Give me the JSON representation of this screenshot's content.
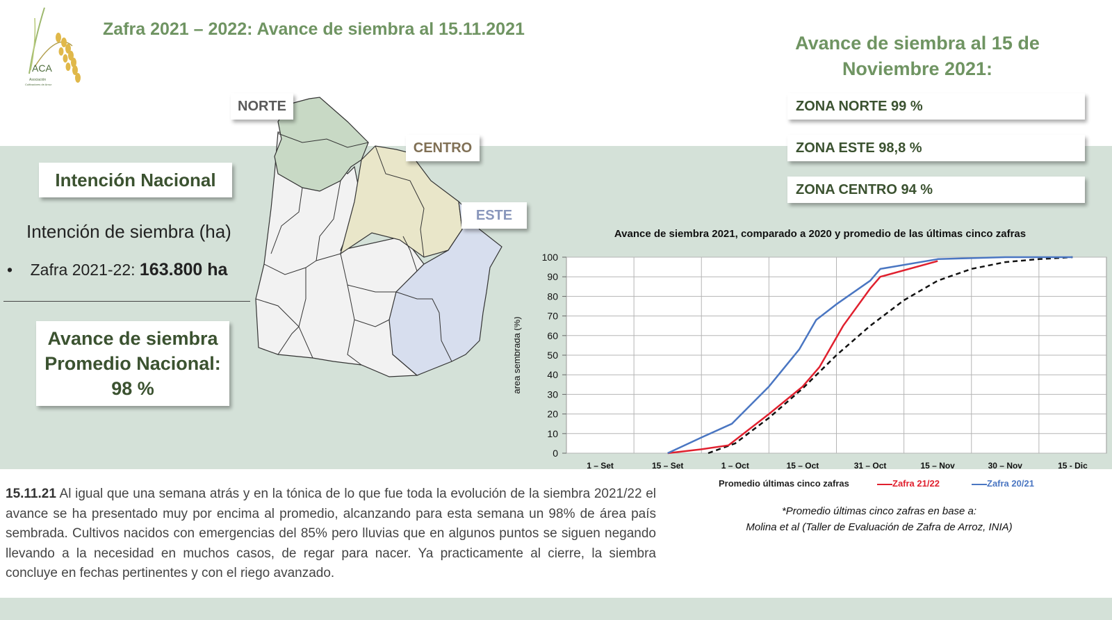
{
  "logo": {
    "name": "ACA",
    "sub1": "Asociación",
    "sub2": "Cultivadores de Arroz"
  },
  "title": "Zafra 2021 – 2022: Avance de siembra al 15.11.2021",
  "right_panel": {
    "title_line1": "Avance de siembra al 15 de",
    "title_line2": "Noviembre 2021:",
    "zones": [
      "ZONA NORTE  99 %",
      "ZONA ESTE 98,8 %",
      "ZONA CENTRO 94 %"
    ]
  },
  "left_panel": {
    "intencion_label": "Intención Nacional",
    "intencion_siembra": "Intención de siembra (ha)",
    "bullet": "•",
    "zafra_prefix": "Zafra ",
    "zafra_year": "2021-22: ",
    "zafra_value": "163.800 ha",
    "avance_line1": "Avance de siembra",
    "avance_line2": "Promedio Nacional:",
    "avance_line3": "98 %"
  },
  "map_labels": {
    "norte": "NORTE",
    "centro": "CENTRO",
    "este": "ESTE"
  },
  "colors": {
    "norte": "#c8d9c5",
    "centro": "#e9e6c9",
    "este": "#d7deee",
    "other": "#f2f2f2",
    "zafra_21_22": "#e0202e",
    "zafra_20_21": "#4a76c2",
    "promedio": "#111111"
  },
  "paragraph": {
    "date": "15.11.21",
    "text": " Al igual que una semana atrás y en la tónica de lo que fue toda la evolución de la siembra 2021/22 el avance se ha presentado muy por encima al promedio,  alcanzando para esta semana un 98% de área país sembrada. Cultivos nacidos con emergencias del 85% pero lluvias que en algunos puntos se siguen negando llevando a la necesidad en muchos casos, de regar para nacer. Ya practicamente al cierre, la siembra concluye en fechas pertinentes y con el riego avanzado."
  },
  "chart_data": {
    "type": "line",
    "title": "Avance de siembra 2021, comparado a 2020 y promedio de las últimas cinco zafras",
    "ylabel": "área sembrada (%)",
    "xlabel": "",
    "categories": [
      "1 – Set",
      "15 – Set",
      "1 – Oct",
      "15 – Oct",
      "31 – Oct",
      "15 – Nov",
      "30 – Nov",
      "15 - Dic"
    ],
    "ylim": [
      0,
      100
    ],
    "yticks": [
      0,
      10,
      20,
      30,
      40,
      50,
      60,
      70,
      80,
      90,
      100
    ],
    "grid": true,
    "legend_position": "bottom",
    "series": [
      {
        "name": "Promedio últimas cinco zafras",
        "style": "dashed",
        "points": [
          [
            1.6,
            0
          ],
          [
            2.0,
            5
          ],
          [
            2.5,
            18
          ],
          [
            3.0,
            33
          ],
          [
            3.5,
            50
          ],
          [
            4.0,
            65
          ],
          [
            4.5,
            78
          ],
          [
            5.0,
            88
          ],
          [
            5.5,
            94
          ],
          [
            6.0,
            97.5
          ],
          [
            6.5,
            99
          ],
          [
            7.0,
            100
          ]
        ]
      },
      {
        "name": "Zafra 21/22",
        "style": "solid",
        "points": [
          [
            1.0,
            0
          ],
          [
            1.5,
            2
          ],
          [
            1.9,
            4
          ],
          [
            2.5,
            20
          ],
          [
            3.0,
            34
          ],
          [
            3.25,
            44
          ],
          [
            3.6,
            65
          ],
          [
            4.0,
            84
          ],
          [
            4.15,
            90
          ],
          [
            5.0,
            98
          ]
        ]
      },
      {
        "name": "Zafra 20/21",
        "style": "solid",
        "points": [
          [
            1.0,
            0
          ],
          [
            1.5,
            8
          ],
          [
            1.95,
            15
          ],
          [
            2.5,
            34
          ],
          [
            2.95,
            53
          ],
          [
            3.2,
            68
          ],
          [
            3.5,
            76
          ],
          [
            4.0,
            88
          ],
          [
            4.15,
            94
          ],
          [
            5.0,
            99
          ],
          [
            5.5,
            99.5
          ],
          [
            6.0,
            100
          ],
          [
            7.0,
            100
          ]
        ]
      }
    ]
  },
  "legend": {
    "promedio": "Promedio últimas cinco zafras",
    "z21": "Zafra 21/22",
    "z20": "Zafra 20/21"
  },
  "footnote": {
    "line1": "*Promedio últimas cinco zafras en base a:",
    "line2": "Molina et al (Taller de Evaluación de Zafra de Arroz, INIA)"
  }
}
